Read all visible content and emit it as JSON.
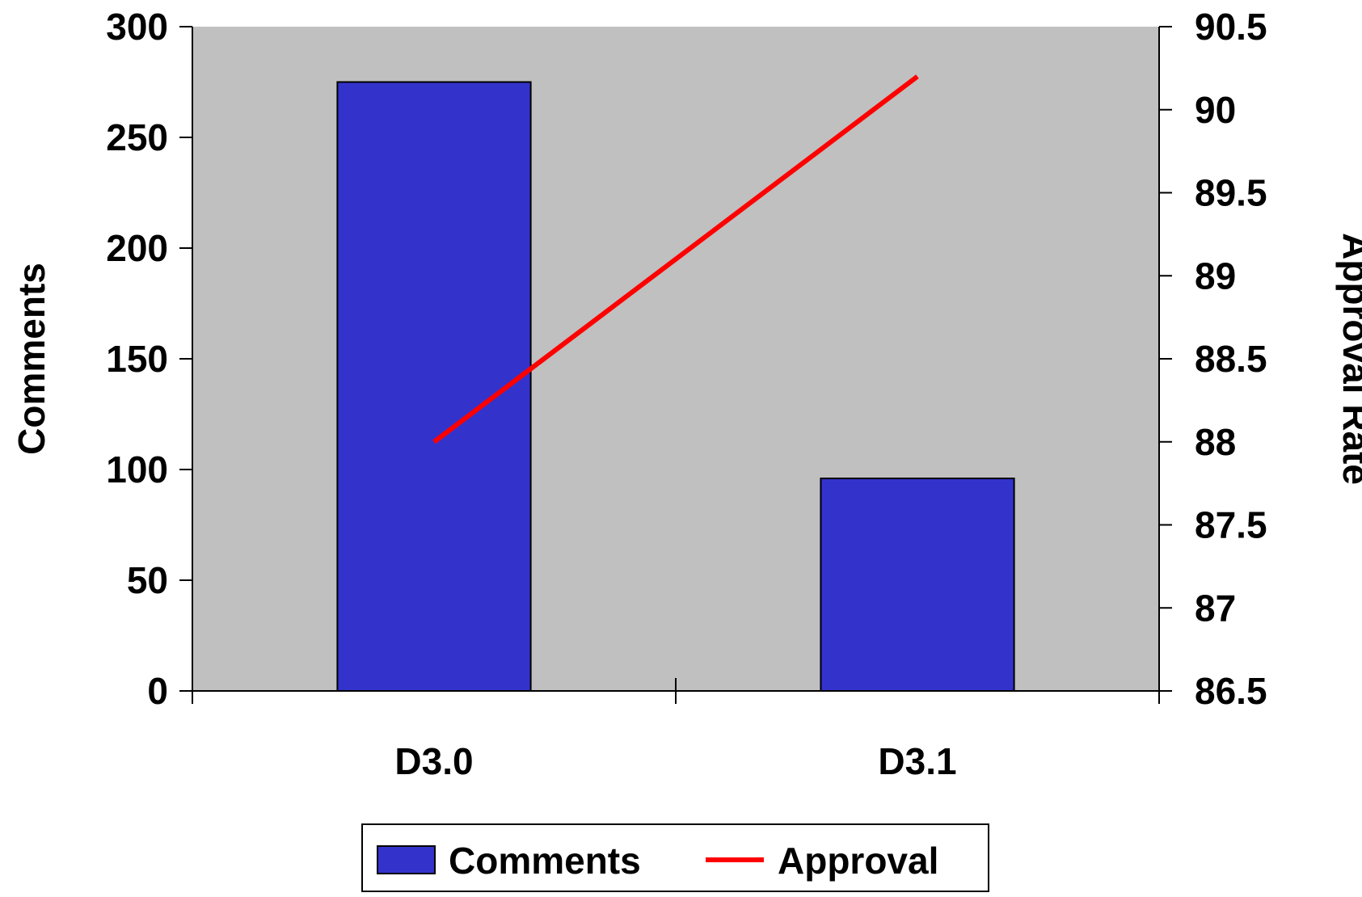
{
  "chart_data": {
    "type": "bar",
    "categories": [
      "D3.0",
      "D3.1"
    ],
    "series": [
      {
        "name": "Comments",
        "type": "bar",
        "axis": "left",
        "values": [
          275,
          96
        ]
      },
      {
        "name": "Approval",
        "type": "line",
        "axis": "right",
        "values": [
          88.0,
          90.2
        ]
      }
    ],
    "ylabel": "Comments",
    "ylabel_right": "Approval Rate",
    "ylim": [
      0,
      300
    ],
    "ylim_right": [
      86.5,
      90.5
    ],
    "yticks": [
      "0",
      "50",
      "100",
      "150",
      "200",
      "250",
      "300"
    ],
    "yticks_right": [
      "86.5",
      "87",
      "87.5",
      "88",
      "88.5",
      "89",
      "89.5",
      "90",
      "90.5"
    ],
    "grid": false,
    "legend_position": "bottom",
    "colors": {
      "plot_background": "#c0c0c0",
      "bar_fill": "#3333cc",
      "line": "#ff0000"
    }
  }
}
